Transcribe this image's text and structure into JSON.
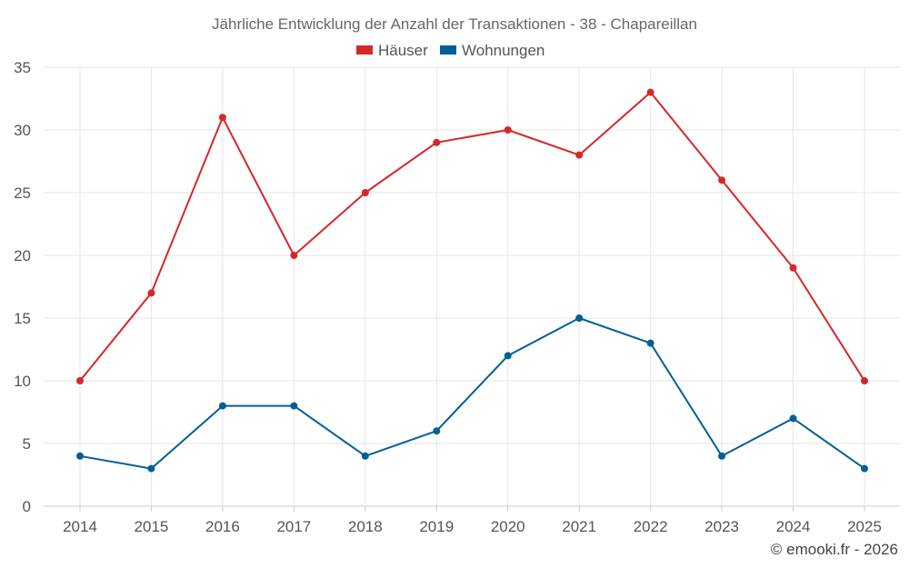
{
  "chart_data": {
    "type": "line",
    "title": "Jährliche Entwicklung der Anzahl der Transaktionen - 38 - Chapareillan",
    "categories": [
      "2014",
      "2015",
      "2016",
      "2017",
      "2018",
      "2019",
      "2020",
      "2021",
      "2022",
      "2023",
      "2024",
      "2025"
    ],
    "series": [
      {
        "name": "Häuser",
        "color": "#d62728",
        "values": [
          10,
          17,
          31,
          20,
          25,
          29,
          30,
          28,
          33,
          26,
          19,
          10
        ]
      },
      {
        "name": "Wohnungen",
        "color": "#005f96",
        "values": [
          4,
          3,
          8,
          8,
          4,
          6,
          12,
          15,
          13,
          4,
          7,
          3
        ]
      }
    ],
    "xlabel": "",
    "ylabel": "",
    "ylim": [
      0,
      35
    ],
    "yticks": [
      0,
      5,
      10,
      15,
      20,
      25,
      30,
      35
    ],
    "grid": true,
    "legend_position": "top-center"
  },
  "credit": "© emooki.fr - 2026"
}
